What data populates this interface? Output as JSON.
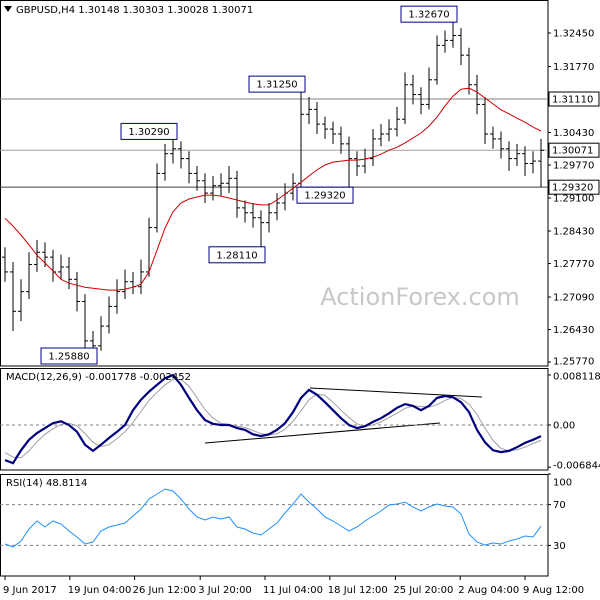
{
  "chart_data": [
    {
      "type": "ohlc",
      "title": "GBPUSD,H4  1.30148 1.30303 1.30028 1.30071",
      "watermark": "ActionForex.com",
      "color": "#000000",
      "open": [
        1.279,
        1.276,
        1.268,
        1.272,
        1.2775,
        1.28,
        1.279,
        1.276,
        1.277,
        1.2745,
        1.27,
        1.262,
        1.261,
        1.265,
        1.269,
        1.272,
        1.274,
        1.273,
        1.276,
        1.285,
        1.296,
        1.3,
        1.301,
        1.299,
        1.296,
        1.2945,
        1.292,
        1.2935,
        1.294,
        1.295,
        1.289,
        1.288,
        1.287,
        1.286,
        1.288,
        1.29,
        1.292,
        1.294,
        1.308,
        1.309,
        1.306,
        1.305,
        1.304,
        1.302,
        1.299,
        1.2975,
        1.299,
        1.303,
        1.304,
        1.305,
        1.307,
        1.314,
        1.312,
        1.31,
        1.315,
        1.322,
        1.323,
        1.324,
        1.32,
        1.314,
        1.31,
        1.304,
        1.303,
        1.301,
        1.299,
        1.3,
        1.298,
        1.2985
      ],
      "high": [
        1.281,
        1.278,
        1.2745,
        1.28,
        1.2825,
        1.282,
        1.2805,
        1.2795,
        1.279,
        1.276,
        1.2715,
        1.264,
        1.267,
        1.271,
        1.2745,
        1.2765,
        1.276,
        1.2785,
        1.287,
        1.298,
        1.302,
        1.3029,
        1.3025,
        1.3005,
        1.2975,
        1.296,
        1.2955,
        1.296,
        1.2975,
        1.2965,
        1.2905,
        1.29,
        1.2885,
        1.29,
        1.292,
        1.294,
        1.296,
        1.3125,
        1.3115,
        1.3105,
        1.3075,
        1.3065,
        1.3055,
        1.3035,
        1.3005,
        1.301,
        1.305,
        1.306,
        1.307,
        1.3095,
        1.3165,
        1.316,
        1.3135,
        1.3175,
        1.324,
        1.325,
        1.3267,
        1.3255,
        1.3215,
        1.316,
        1.3115,
        1.3055,
        1.3045,
        1.3025,
        1.302,
        1.3015,
        1.3005,
        1.303
      ],
      "low": [
        1.274,
        1.264,
        1.266,
        1.2705,
        1.276,
        1.277,
        1.274,
        1.2745,
        1.2725,
        1.268,
        1.26,
        1.2588,
        1.26,
        1.2635,
        1.2675,
        1.2705,
        1.2715,
        1.2715,
        1.275,
        1.284,
        1.2945,
        1.298,
        1.297,
        1.294,
        1.2925,
        1.29,
        1.2905,
        1.2915,
        1.292,
        1.287,
        1.286,
        1.285,
        1.2811,
        1.284,
        1.2865,
        1.2885,
        1.2905,
        1.293,
        1.306,
        1.304,
        1.303,
        1.302,
        1.3,
        1.2932,
        1.2955,
        1.296,
        1.2975,
        1.3015,
        1.3025,
        1.3035,
        1.306,
        1.31,
        1.308,
        1.309,
        1.314,
        1.3205,
        1.3215,
        1.318,
        1.312,
        1.308,
        1.302,
        1.301,
        1.299,
        1.2965,
        1.2975,
        1.2955,
        1.296,
        1.2932
      ],
      "close": [
        1.276,
        1.268,
        1.272,
        1.2775,
        1.28,
        1.279,
        1.276,
        1.277,
        1.2745,
        1.27,
        1.262,
        1.261,
        1.265,
        1.269,
        1.272,
        1.274,
        1.273,
        1.276,
        1.285,
        1.296,
        1.3,
        1.301,
        1.299,
        1.296,
        1.2945,
        1.292,
        1.2935,
        1.294,
        1.295,
        1.289,
        1.288,
        1.287,
        1.286,
        1.288,
        1.29,
        1.292,
        1.294,
        1.308,
        1.309,
        1.306,
        1.305,
        1.304,
        1.302,
        1.299,
        1.2975,
        1.299,
        1.303,
        1.304,
        1.305,
        1.307,
        1.314,
        1.312,
        1.31,
        1.315,
        1.322,
        1.323,
        1.324,
        1.32,
        1.314,
        1.31,
        1.304,
        1.303,
        1.301,
        1.299,
        1.3,
        1.298,
        1.2985,
        1.3007
      ],
      "ma_color": "#d00000",
      "ma_values": [
        1.2869,
        1.2853,
        1.2835,
        1.2815,
        1.2794,
        1.2778,
        1.2762,
        1.2745,
        1.2737,
        1.2733,
        1.2729,
        1.2727,
        1.2725,
        1.2723,
        1.2723,
        1.2725,
        1.2729,
        1.2735,
        1.276,
        1.2804,
        1.2849,
        1.2882,
        1.29,
        1.2908,
        1.2912,
        1.2916,
        1.2916,
        1.2914,
        1.291,
        1.2906,
        1.2902,
        1.2898,
        1.2896,
        1.2896,
        1.2906,
        1.2918,
        1.293,
        1.2942,
        1.2955,
        1.2967,
        1.2977,
        1.2983,
        1.2985,
        1.2987,
        1.2987,
        1.2989,
        1.2993,
        1.2999,
        1.3007,
        1.3013,
        1.3022,
        1.3032,
        1.3042,
        1.3056,
        1.3074,
        1.3097,
        1.3117,
        1.3131,
        1.3133,
        1.3125,
        1.3113,
        1.3101,
        1.3089,
        1.3081,
        1.3072,
        1.3064,
        1.3054,
        1.3046
      ],
      "annotations": [
        {
          "value": 1.3267,
          "label": "1.32670"
        },
        {
          "value": 1.3125,
          "label": "1.31250"
        },
        {
          "value": 1.3029,
          "label": "1.30290"
        },
        {
          "value": 1.2932,
          "label": "1.29320"
        },
        {
          "value": 1.2811,
          "label": "1.28110"
        },
        {
          "value": 1.2588,
          "label": "1.25880"
        }
      ],
      "hlines": [
        {
          "value": 1.3111,
          "label": "1.31110",
          "color": "#808080"
        },
        {
          "value": 1.30071,
          "label": "1.30071",
          "color": "#a0a0a0"
        },
        {
          "value": 1.2932,
          "label": "1.29320",
          "color": "#404040"
        }
      ],
      "ylim": [
        1.2569,
        1.3312
      ],
      "yticks": [
        {
          "value": 1.3245,
          "label": "1.32450"
        },
        {
          "value": 1.3177,
          "label": "1.31770"
        },
        {
          "value": 1.3043,
          "label": "1.30430"
        },
        {
          "value": 1.2977,
          "label": "1.29770"
        },
        {
          "value": 1.291,
          "label": "1.29100"
        },
        {
          "value": 1.2843,
          "label": "1.28430"
        },
        {
          "value": 1.2777,
          "label": "1.27770"
        },
        {
          "value": 1.2709,
          "label": "1.27090"
        },
        {
          "value": 1.2643,
          "label": "1.26430"
        },
        {
          "value": 1.2577,
          "label": "1.25770"
        }
      ],
      "xlim": [
        -0.625,
        67.875
      ],
      "xticks": [
        {
          "value": 0,
          "label": "9 Jun 2017"
        },
        {
          "value": 8.1,
          "label": "19 Jun 04:00"
        },
        {
          "value": 16.2,
          "label": "26 Jun 12:00"
        },
        {
          "value": 24.4,
          "label": "3 Jul 20:00"
        },
        {
          "value": 32.5,
          "label": "11 Jul 04:00"
        },
        {
          "value": 40.6,
          "label": "18 Jul 12:00"
        },
        {
          "value": 48.8,
          "label": "25 Jul 20:00"
        },
        {
          "value": 56.9,
          "label": "2 Aug 04:00"
        },
        {
          "value": 65,
          "label": "9 Aug 12:00"
        }
      ],
      "grid": false
    },
    {
      "type": "line",
      "title": "MACD(12,26,9) -0.001778 -0.002452",
      "series": [
        {
          "color": "#000080",
          "width": 2.2,
          "values": [
            -0.0057,
            -0.0062,
            -0.0041,
            -0.0024,
            -0.0013,
            -0.0005,
            0.0003,
            0.0006,
            0.0,
            -0.0011,
            -0.0032,
            -0.0042,
            -0.0032,
            -0.0021,
            -0.0011,
            0.0,
            0.0024,
            0.0041,
            0.0054,
            0.0065,
            0.0076,
            0.0081,
            0.0065,
            0.0044,
            0.0024,
            0.0008,
            0.0002,
            0.0,
            0.0,
            -0.0005,
            -0.0008,
            -0.0015,
            -0.0018,
            -0.0015,
            -0.0008,
            0.0003,
            0.0021,
            0.0044,
            0.0057,
            0.0049,
            0.0037,
            0.0024,
            0.0011,
            0.0,
            -0.0005,
            -0.0002,
            0.0005,
            0.0011,
            0.0019,
            0.0028,
            0.0034,
            0.0031,
            0.0024,
            0.0031,
            0.0044,
            0.0047,
            0.0045,
            0.0037,
            0.0021,
            -0.0008,
            -0.0028,
            -0.0041,
            -0.0044,
            -0.0042,
            -0.0036,
            -0.0029,
            -0.0024,
            -0.0018
          ]
        },
        {
          "color": "#a0a0a0",
          "width": 1,
          "values": [
            -0.0045,
            -0.0052,
            -0.0053,
            -0.0042,
            -0.0027,
            -0.0015,
            -0.0006,
            0.0001,
            0.0003,
            -0.0001,
            -0.0014,
            -0.0028,
            -0.0035,
            -0.0032,
            -0.0022,
            -0.0011,
            0.0004,
            0.0022,
            0.004,
            0.0053,
            0.0065,
            0.0074,
            0.0074,
            0.0063,
            0.0044,
            0.0025,
            0.0011,
            0.0003,
            0.0001,
            -0.0002,
            -0.0004,
            -0.0009,
            -0.0014,
            -0.0016,
            -0.0014,
            -0.0007,
            0.0006,
            0.0023,
            0.0041,
            0.005,
            0.0048,
            0.0037,
            0.0024,
            0.0012,
            0.0002,
            -0.0002,
            0.0,
            0.0005,
            0.0012,
            0.0019,
            0.0027,
            0.0031,
            0.003,
            0.0029,
            0.0033,
            0.004,
            0.0045,
            0.0043,
            0.0034,
            0.0017,
            -0.0005,
            -0.0025,
            -0.0038,
            -0.0042,
            -0.004,
            -0.0036,
            -0.003,
            -0.0025
          ]
        }
      ],
      "levels": [
        0
      ],
      "ylim": [
        -0.0073,
        0.00925
      ],
      "yticks": [
        0.008118,
        {
          "value": 0,
          "label": "0.00"
        },
        -0.006844
      ]
    },
    {
      "type": "line",
      "title": "RSI(14) 48.8114",
      "series": [
        {
          "color": "#1e90ff",
          "width": 1,
          "values": [
            31.4,
            28.4,
            34.3,
            46.1,
            53.9,
            48.0,
            53.9,
            51.0,
            44.1,
            38.2,
            31.4,
            33.3,
            44.1,
            48.0,
            50.0,
            52.0,
            58.8,
            65.7,
            75.5,
            80.4,
            85.3,
            83.3,
            75.5,
            65.7,
            57.8,
            54.9,
            57.8,
            55.9,
            57.8,
            48.0,
            46.1,
            42.2,
            40.2,
            46.1,
            52.0,
            61.8,
            70.6,
            80.4,
            72.5,
            65.7,
            57.8,
            53.9,
            49.0,
            44.1,
            48.0,
            53.9,
            58.8,
            63.7,
            69.6,
            70.6,
            72.5,
            67.6,
            63.7,
            67.6,
            70.6,
            68.6,
            67.6,
            60.8,
            41.2,
            33.3,
            30.4,
            32.4,
            31.4,
            34.3,
            36.3,
            39.2,
            38.2,
            48.8
          ]
        }
      ],
      "levels": [
        30,
        70
      ],
      "ylim": [
        0,
        100
      ],
      "yticks": [
        100,
        70,
        30
      ]
    }
  ]
}
